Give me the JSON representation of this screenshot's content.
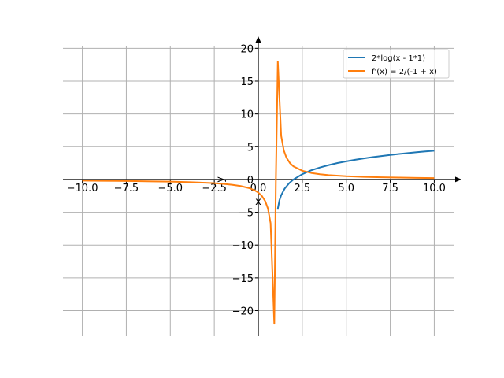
{
  "chart_data": {
    "type": "line",
    "title": "",
    "xlabel": "x",
    "ylabel": "y",
    "xlim": [
      -11.1,
      11.1
    ],
    "ylim": [
      -23.9,
      20.4
    ],
    "grid": true,
    "legend_position": "top-right",
    "x_ticks": [
      -10.0,
      -7.5,
      -5.0,
      -2.5,
      0.0,
      2.5,
      5.0,
      7.5,
      10.0
    ],
    "x_tick_labels": [
      "−10.0",
      "−7.5",
      "−5.0",
      "−2.5",
      "0.0",
      "2.5",
      "5.0",
      "7.5",
      "10.0"
    ],
    "y_ticks": [
      -20,
      -15,
      -10,
      -5,
      0,
      5,
      10,
      15,
      20
    ],
    "y_tick_labels": [
      "−20",
      "−15",
      "−10",
      "−5",
      "0",
      "5",
      "10",
      "15",
      "20"
    ],
    "series": [
      {
        "name": "2*log(x - 1*1)",
        "color": "#1f77b4",
        "points": [
          [
            1.1,
            -4.6
          ],
          [
            1.2,
            -3.2
          ],
          [
            1.3,
            -2.4
          ],
          [
            1.5,
            -1.39
          ],
          [
            1.75,
            -0.58
          ],
          [
            2.0,
            0.0
          ],
          [
            2.5,
            0.81
          ],
          [
            3.0,
            1.39
          ],
          [
            3.5,
            1.83
          ],
          [
            4.0,
            2.2
          ],
          [
            4.5,
            2.51
          ],
          [
            5.0,
            2.77
          ],
          [
            5.5,
            3.01
          ],
          [
            6.0,
            3.22
          ],
          [
            6.5,
            3.41
          ],
          [
            7.0,
            3.58
          ],
          [
            7.5,
            3.74
          ],
          [
            8.0,
            3.89
          ],
          [
            8.5,
            4.03
          ],
          [
            9.0,
            4.16
          ],
          [
            9.5,
            4.28
          ],
          [
            10.0,
            4.39
          ]
        ]
      },
      {
        "name": "f'(x) = 2/(-1 + x)",
        "color": "#ff7f0e",
        "points": [
          [
            -10.0,
            -0.18
          ],
          [
            -9.0,
            -0.2
          ],
          [
            -8.0,
            -0.22
          ],
          [
            -7.0,
            -0.25
          ],
          [
            -6.0,
            -0.29
          ],
          [
            -5.0,
            -0.33
          ],
          [
            -4.0,
            -0.4
          ],
          [
            -3.0,
            -0.5
          ],
          [
            -2.5,
            -0.57
          ],
          [
            -2.0,
            -0.67
          ],
          [
            -1.5,
            -0.8
          ],
          [
            -1.0,
            -1.0
          ],
          [
            -0.5,
            -1.33
          ],
          [
            -0.2,
            -1.67
          ],
          [
            0.0,
            -2.0
          ],
          [
            0.2,
            -2.5
          ],
          [
            0.4,
            -3.33
          ],
          [
            0.55,
            -4.44
          ],
          [
            0.7,
            -6.67
          ],
          [
            0.91,
            -22.0
          ],
          [
            1.0,
            0.0
          ],
          [
            1.11,
            18.0
          ],
          [
            1.3,
            6.67
          ],
          [
            1.45,
            4.44
          ],
          [
            1.6,
            3.33
          ],
          [
            1.8,
            2.5
          ],
          [
            2.0,
            2.0
          ],
          [
            2.5,
            1.33
          ],
          [
            3.0,
            1.0
          ],
          [
            3.5,
            0.8
          ],
          [
            4.0,
            0.67
          ],
          [
            5.0,
            0.5
          ],
          [
            6.0,
            0.4
          ],
          [
            7.0,
            0.33
          ],
          [
            8.0,
            0.29
          ],
          [
            9.0,
            0.25
          ],
          [
            10.0,
            0.22
          ]
        ]
      }
    ]
  }
}
